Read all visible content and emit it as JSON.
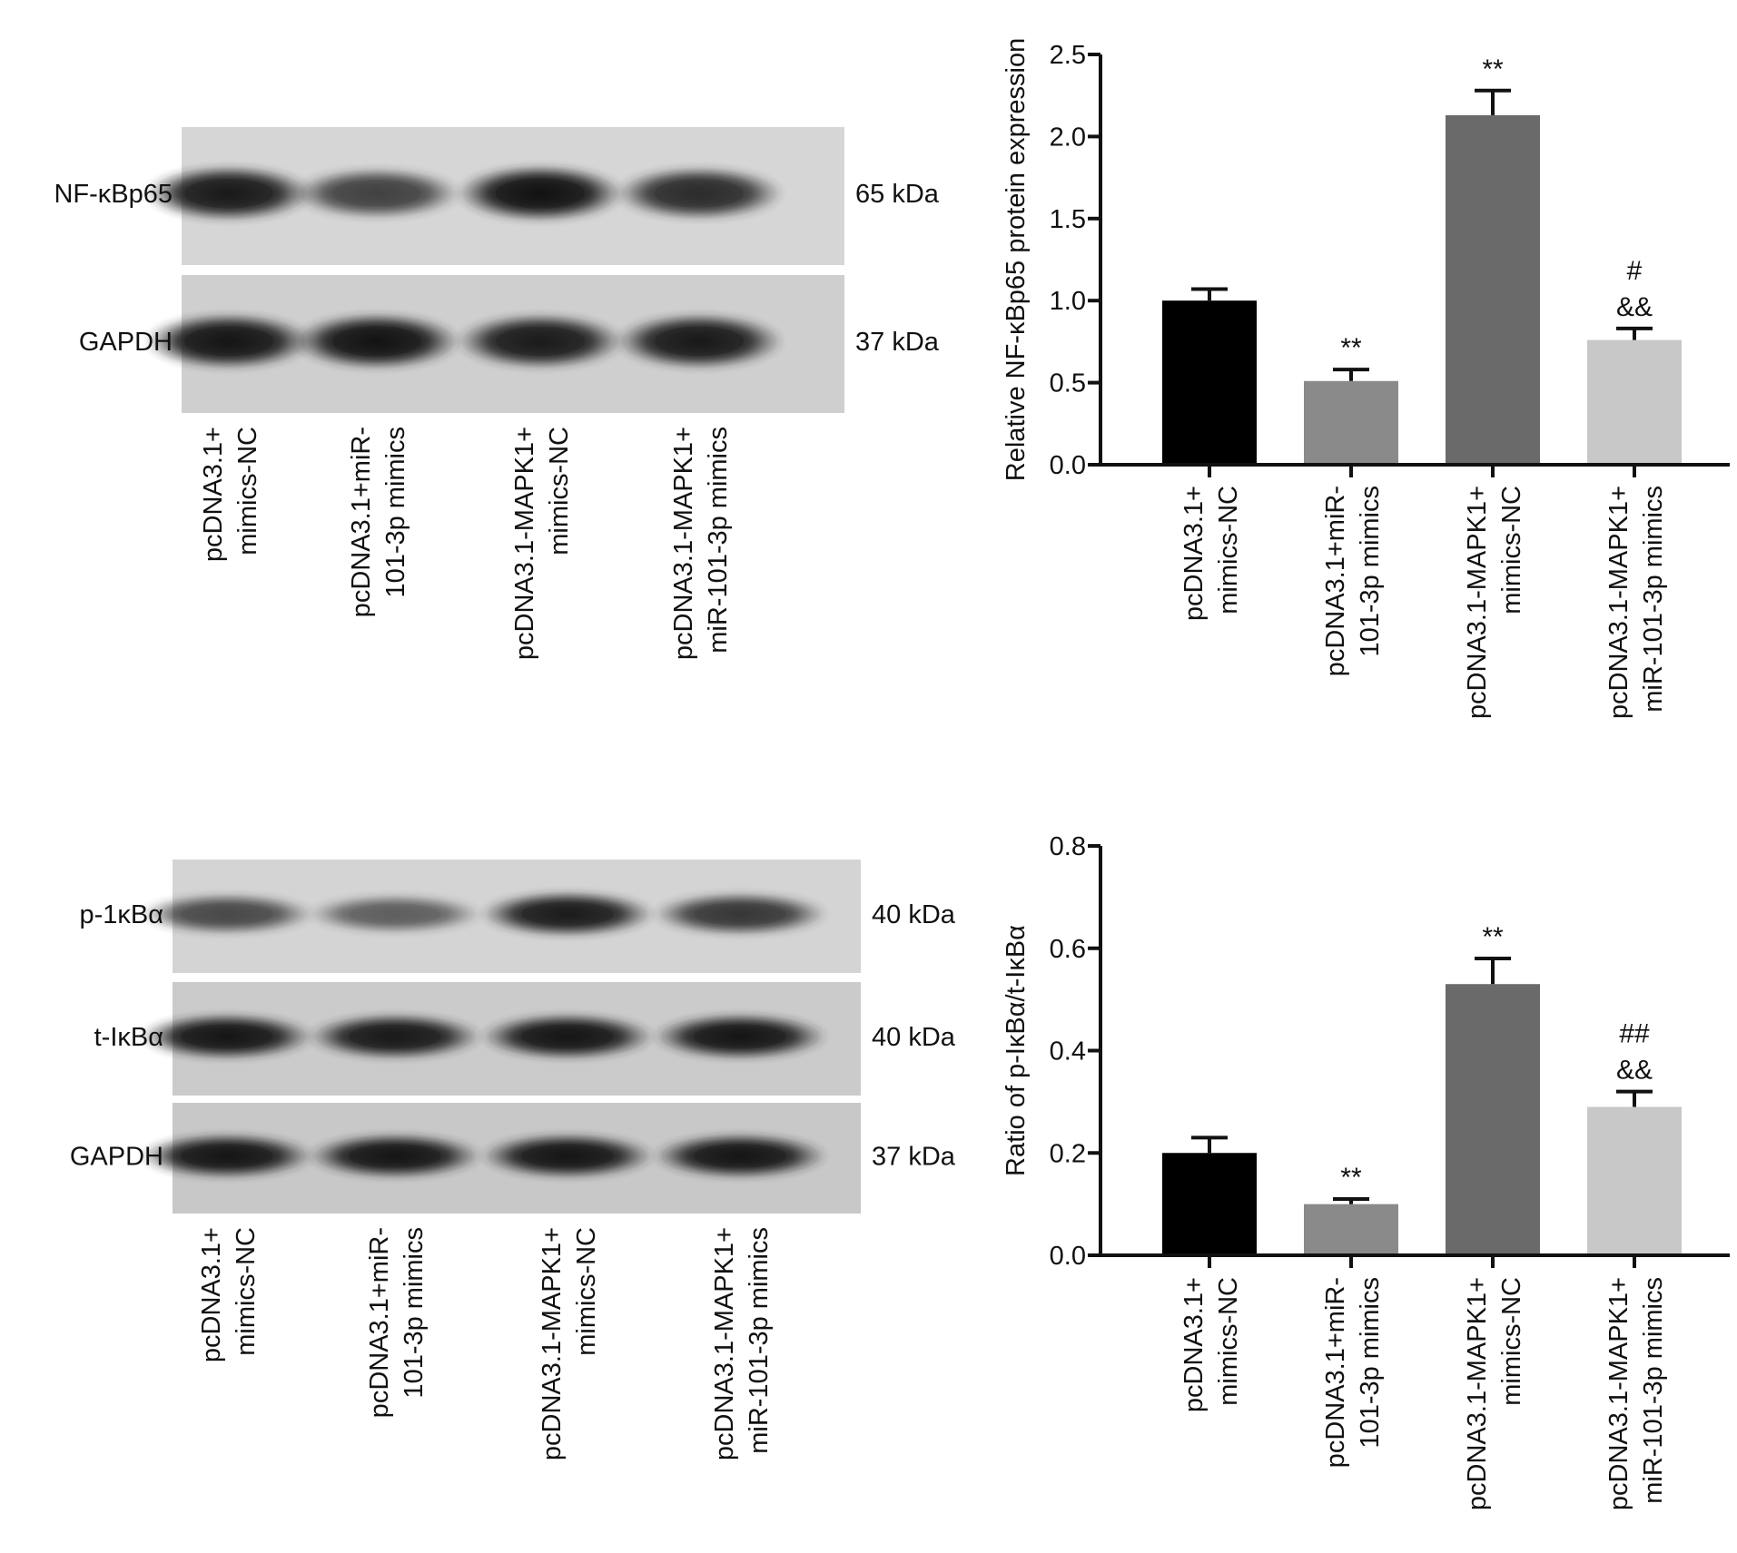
{
  "blots": [
    {
      "rows": [
        {
          "label": "NF-κBp65",
          "size": "65 kDa",
          "intensity": [
            0.92,
            0.62,
            0.98,
            0.78
          ],
          "background": "#d6d6d6"
        },
        {
          "label": "GAPDH",
          "size": "37 kDa",
          "intensity": [
            0.95,
            0.97,
            0.9,
            0.93
          ],
          "background": "#cfcfcf"
        }
      ],
      "lane_labels": [
        [
          "pcDNA3.1+",
          "mimics-NC"
        ],
        [
          "pcDNA3.1+miR-",
          "101-3p mimics"
        ],
        [
          "pcDNA3.1-MAPK1+",
          "mimics-NC"
        ],
        [
          "pcDNA3.1-MAPK1+",
          "miR-101-3p mimics"
        ]
      ]
    },
    {
      "rows": [
        {
          "label": "p-1κBα",
          "size": "40 kDa",
          "intensity": [
            0.55,
            0.38,
            0.9,
            0.7
          ],
          "background": "#d4d4d4"
        },
        {
          "label": "t-IκBα",
          "size": "40 kDa",
          "intensity": [
            0.95,
            0.93,
            0.95,
            0.95
          ],
          "background": "#cbcbcb"
        },
        {
          "label": "GAPDH",
          "size": "37 kDa",
          "intensity": [
            0.96,
            0.96,
            0.96,
            0.96
          ],
          "background": "#c8c8c8"
        }
      ],
      "lane_labels": [
        [
          "pcDNA3.1+",
          "mimics-NC"
        ],
        [
          "pcDNA3.1+miR-",
          "101-3p mimics"
        ],
        [
          "pcDNA3.1-MAPK1+",
          "mimics-NC"
        ],
        [
          "pcDNA3.1-MAPK1+",
          "miR-101-3p mimics"
        ]
      ]
    }
  ],
  "chart_data": [
    {
      "type": "bar",
      "title": "",
      "xlabel": "",
      "ylabel": "Relative NF-κBp65  protein expression",
      "ylim": [
        0,
        2.5
      ],
      "yticks": [
        "0.0",
        "0.5",
        "1.0",
        "1.5",
        "2.0",
        "2.5"
      ],
      "grid": false,
      "categories": [
        [
          "pcDNA3.1+",
          "mimics-NC"
        ],
        [
          "pcDNA3.1+miR-",
          "101-3p mimics"
        ],
        [
          "pcDNA3.1-MAPK1+",
          "mimics-NC"
        ],
        [
          "pcDNA3.1-MAPK1+",
          "miR-101-3p mimics"
        ]
      ],
      "values": [
        1.0,
        0.51,
        2.13,
        0.76
      ],
      "errors": [
        0.07,
        0.07,
        0.15,
        0.07
      ],
      "annotations": [
        [],
        [
          "**"
        ],
        [
          "**"
        ],
        [
          "#",
          "&&"
        ]
      ],
      "colors": [
        "#000000",
        "#8a8a8a",
        "#6a6a6a",
        "#c8c8c8"
      ]
    },
    {
      "type": "bar",
      "title": "",
      "xlabel": "",
      "ylabel": "Ratio of p-IκBα/t-IκBα",
      "ylim": [
        0,
        0.8
      ],
      "yticks": [
        "0.0",
        "0.2",
        "0.4",
        "0.6",
        "0.8"
      ],
      "grid": false,
      "categories": [
        [
          "pcDNA3.1+",
          "mimics-NC"
        ],
        [
          "pcDNA3.1+miR-",
          "101-3p mimics"
        ],
        [
          "pcDNA3.1-MAPK1+",
          "mimics-NC"
        ],
        [
          "pcDNA3.1-MAPK1+",
          "miR-101-3p mimics"
        ]
      ],
      "values": [
        0.2,
        0.1,
        0.53,
        0.29
      ],
      "errors": [
        0.03,
        0.01,
        0.05,
        0.03
      ],
      "annotations": [
        [],
        [
          "**"
        ],
        [
          "**"
        ],
        [
          "##",
          "&&"
        ]
      ],
      "colors": [
        "#000000",
        "#8a8a8a",
        "#6a6a6a",
        "#c8c8c8"
      ]
    }
  ]
}
